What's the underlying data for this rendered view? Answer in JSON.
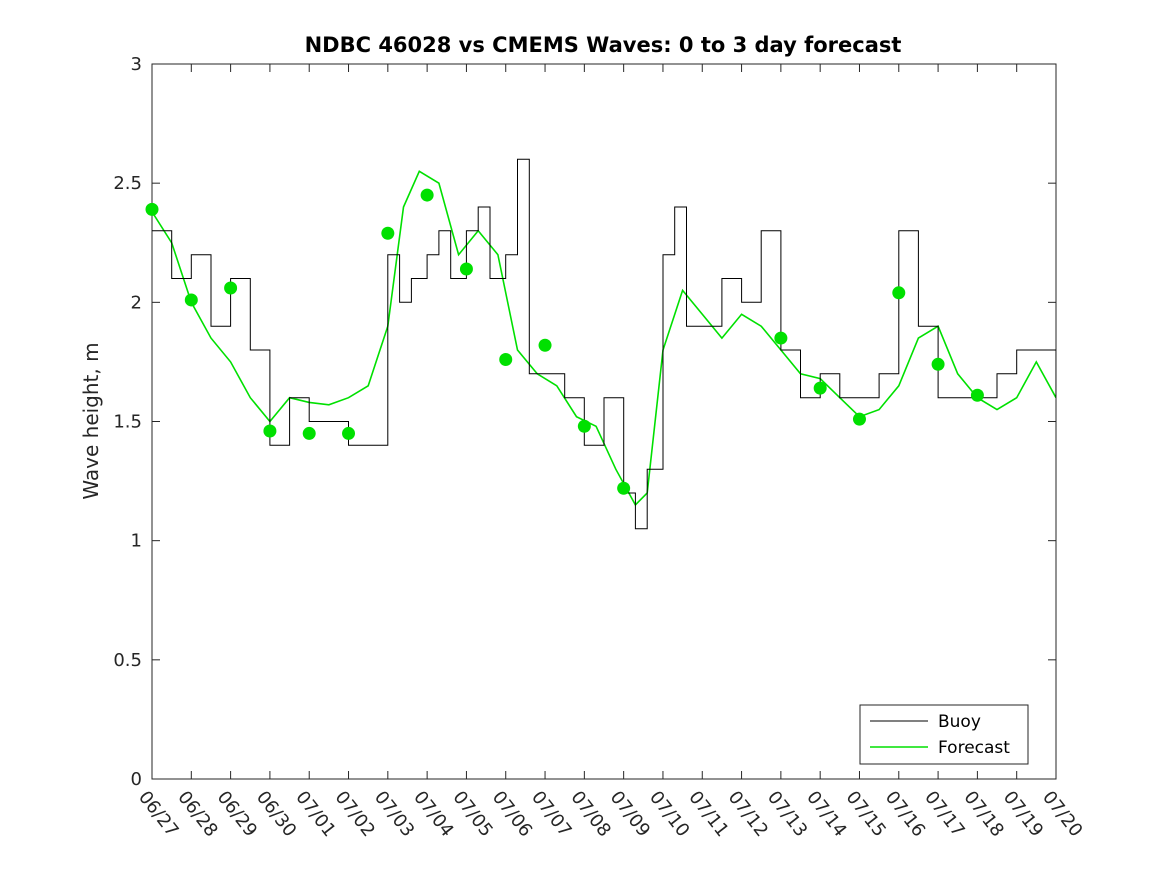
{
  "chart_data": {
    "type": "line",
    "title": "NDBC 46028 vs CMEMS Waves: 0 to 3 day forecast",
    "xlabel": "",
    "ylabel": "Wave height, m",
    "ylim": [
      0,
      3
    ],
    "yticks": [
      "0",
      "0.5",
      "1",
      "1.5",
      "2",
      "2.5",
      "3"
    ],
    "xlim": [
      0,
      23
    ],
    "xticks": [
      "06/27",
      "06/28",
      "06/29",
      "06/30",
      "07/01",
      "07/02",
      "07/03",
      "07/04",
      "07/05",
      "07/06",
      "07/07",
      "07/08",
      "07/09",
      "07/10",
      "07/11",
      "07/12",
      "07/13",
      "07/14",
      "07/15",
      "07/16",
      "07/17",
      "07/18",
      "07/19",
      "07/20"
    ],
    "legend_location": "bottom-right",
    "colors": {
      "buoy": "#000000",
      "forecast": "#00e000"
    },
    "series": [
      {
        "name": "Buoy",
        "x": [
          0,
          0.5,
          1,
          1.5,
          2,
          2.5,
          3,
          3.5,
          4,
          4.5,
          5,
          5.5,
          6,
          6.3,
          6.6,
          7,
          7.3,
          7.6,
          8,
          8.3,
          8.6,
          9,
          9.3,
          9.6,
          10,
          10.5,
          11,
          11.5,
          12,
          12.3,
          12.6,
          13,
          13.3,
          13.6,
          14,
          14.5,
          15,
          15.5,
          16,
          16.5,
          17,
          17.5,
          18,
          18.5,
          19,
          19.5,
          20,
          20.5,
          21,
          21.5,
          22,
          22.5,
          23
        ],
        "y": [
          2.3,
          2.1,
          2.2,
          1.9,
          2.1,
          1.8,
          1.4,
          1.6,
          1.5,
          1.5,
          1.4,
          1.4,
          2.2,
          2.0,
          2.1,
          2.2,
          2.3,
          2.1,
          2.3,
          2.4,
          2.1,
          2.2,
          2.6,
          1.7,
          1.7,
          1.6,
          1.4,
          1.6,
          1.2,
          1.05,
          1.3,
          2.2,
          2.4,
          1.9,
          1.9,
          2.1,
          2.0,
          2.3,
          1.8,
          1.6,
          1.7,
          1.6,
          1.6,
          1.7,
          2.3,
          1.9,
          1.6,
          1.6,
          1.6,
          1.7,
          1.8,
          1.8,
          1.6
        ]
      },
      {
        "name": "Forecast",
        "x": [
          0,
          0.5,
          1,
          1.5,
          2,
          2.5,
          3,
          3.5,
          4,
          4.5,
          5,
          5.5,
          6,
          6.4,
          6.8,
          7.3,
          7.8,
          8.3,
          8.8,
          9.3,
          9.8,
          10.3,
          10.8,
          11.3,
          11.8,
          12.3,
          12.6,
          13,
          13.5,
          14,
          14.5,
          15,
          15.5,
          16,
          16.5,
          17,
          17.5,
          18,
          18.5,
          19,
          19.5,
          20,
          20.5,
          21,
          21.5,
          22,
          22.5,
          23
        ],
        "y": [
          2.38,
          2.25,
          2.0,
          1.85,
          1.75,
          1.6,
          1.5,
          1.6,
          1.58,
          1.57,
          1.6,
          1.65,
          1.9,
          2.4,
          2.55,
          2.5,
          2.2,
          2.3,
          2.2,
          1.8,
          1.7,
          1.65,
          1.52,
          1.48,
          1.3,
          1.15,
          1.2,
          1.8,
          2.05,
          1.95,
          1.85,
          1.95,
          1.9,
          1.8,
          1.7,
          1.68,
          1.6,
          1.52,
          1.55,
          1.65,
          1.85,
          1.9,
          1.7,
          1.6,
          1.55,
          1.6,
          1.75,
          1.6
        ]
      },
      {
        "name": "",
        "role": "forecast-start markers",
        "x": [
          0,
          1,
          2,
          3,
          4,
          5,
          6,
          7,
          8,
          9,
          10,
          11,
          12,
          16,
          17,
          18,
          19,
          20,
          21
        ],
        "y": [
          2.39,
          2.01,
          2.06,
          1.46,
          1.45,
          1.45,
          2.29,
          2.45,
          2.14,
          1.76,
          1.82,
          1.48,
          1.22,
          1.85,
          1.64,
          1.51,
          2.04,
          1.74,
          1.61
        ]
      }
    ]
  }
}
